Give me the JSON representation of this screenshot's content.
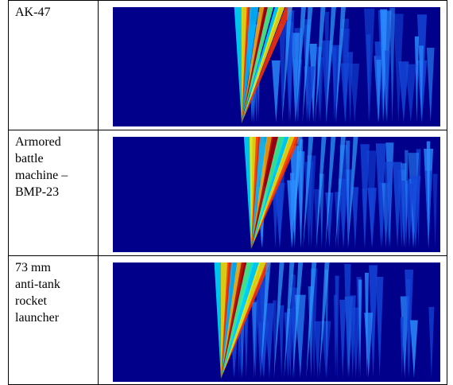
{
  "table": {
    "rows": [
      [
        "AK-47"
      ],
      [
        "Armored battle machine – BMP-23"
      ],
      [
        "73 mm anti-tank rocket launcher"
      ]
    ]
  }
}
